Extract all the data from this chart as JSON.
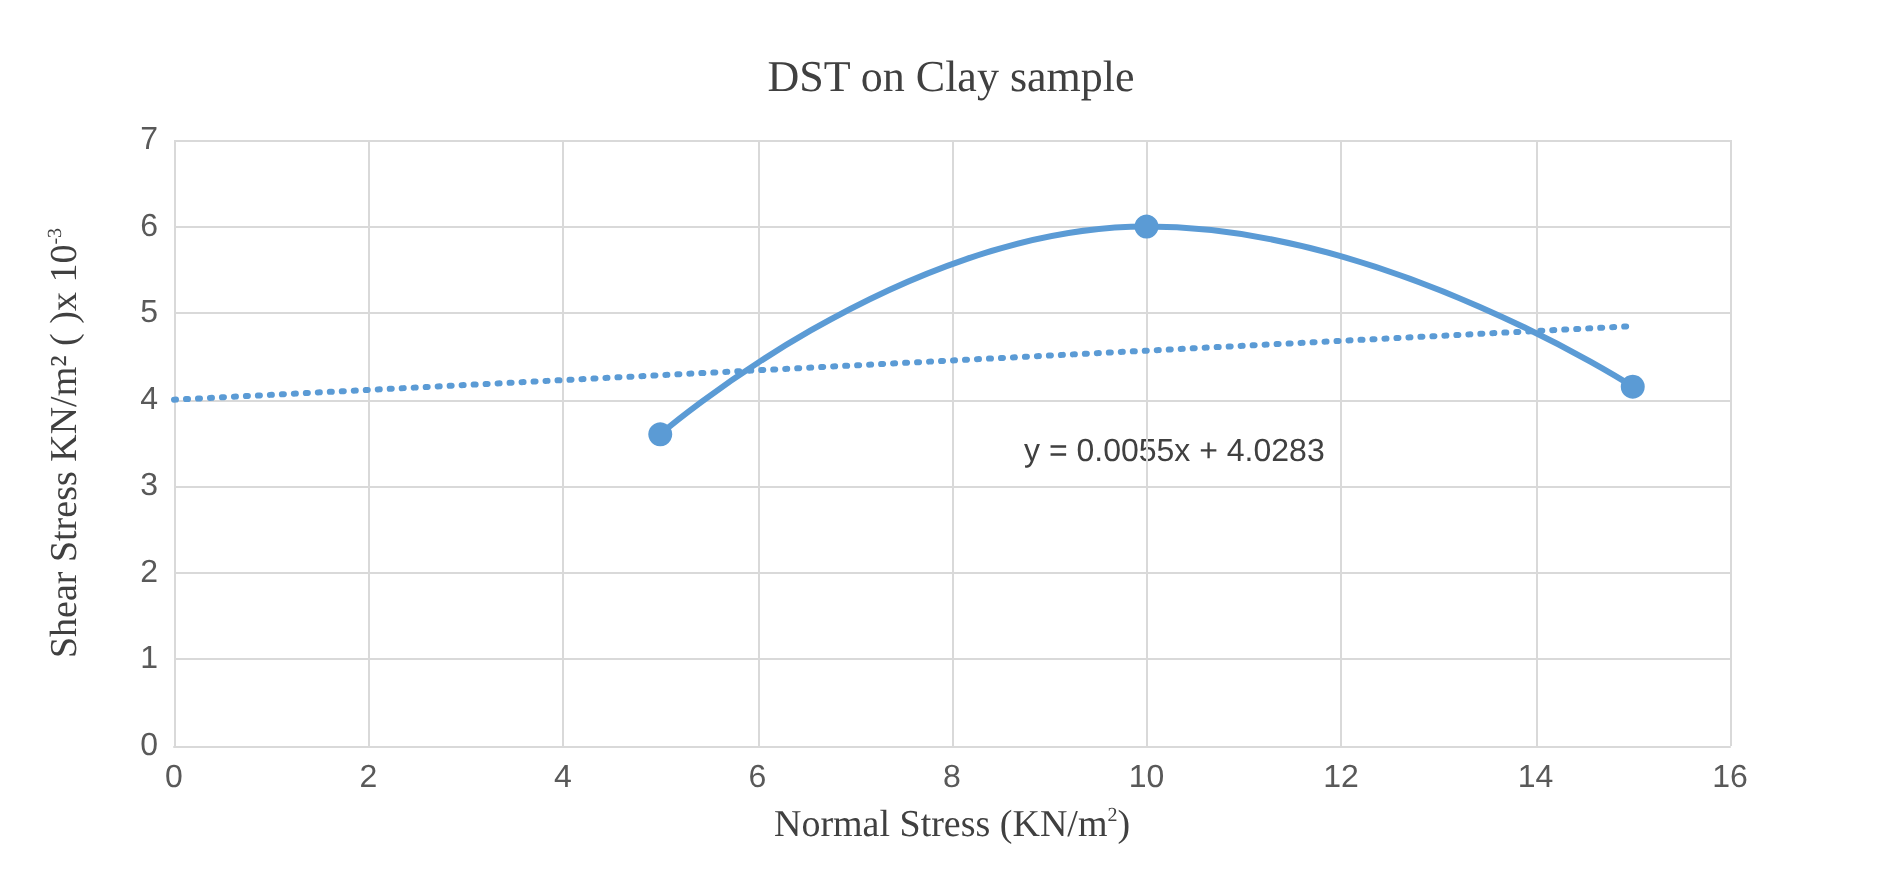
{
  "chart_data": {
    "type": "line",
    "title": "DST on Clay sample",
    "xlabel": "Normal Stress (KN/m$^{2}$)",
    "ylabel": "Shear Stress KN/m² ( )x 10$^{-3}$",
    "annotations": [
      "y = 0.0055x + 4.0283"
    ],
    "series": [
      {
        "color": "#5b9bd5",
        "x": [
          5,
          10,
          15
        ],
        "values": [
          3.6,
          6.0,
          4.15
        ],
        "marker": "circle",
        "line_style": "solid"
      },
      {
        "type": "line",
        "color": "#5b9bd5",
        "x": [
          0,
          15
        ],
        "values": [
          4.0,
          4.85
        ],
        "marker": "none",
        "line_style": "dotted"
      }
    ],
    "xlim": [
      0,
      16
    ],
    "xticks": [
      0,
      2,
      4,
      6,
      8,
      10,
      12,
      14,
      16
    ],
    "ylim": [
      0,
      7
    ],
    "yticks": [
      0,
      1,
      2,
      3,
      4,
      5,
      6,
      7
    ],
    "grid": true
  }
}
